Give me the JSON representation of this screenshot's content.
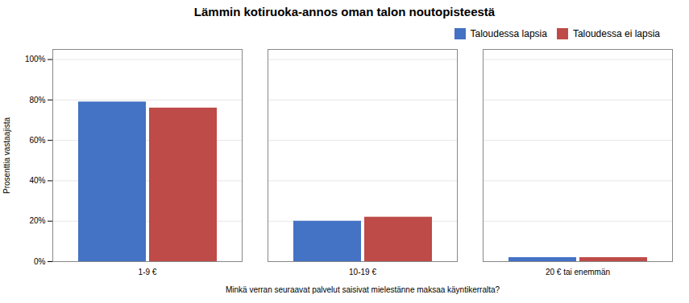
{
  "chart_data": {
    "type": "bar",
    "title": "Lämmin kotiruoka-annos oman talon noutopisteestä",
    "xlabel": "Minkä verran seuraavat palvelut saisivat mielestänne maksaa käyntikerralta?",
    "ylabel": "Prosenttia vastaajista",
    "categories": [
      "1-9 €",
      "10-19 €",
      "20 € tai enemmän"
    ],
    "series": [
      {
        "name": "Taloudessa lapsia",
        "color": "#4472C4",
        "values": [
          0.79,
          0.2,
          0.02
        ]
      },
      {
        "name": "Taloudessa ei lapsia",
        "color": "#BE4B48",
        "values": [
          0.76,
          0.22,
          0.02
        ]
      }
    ],
    "ylim": [
      0,
      1.05
    ],
    "yticks": [
      {
        "value": 0.0,
        "label": "0%"
      },
      {
        "value": 0.2,
        "label": "20%"
      },
      {
        "value": 0.4,
        "label": "40%"
      },
      {
        "value": 0.6,
        "label": "60%"
      },
      {
        "value": 0.8,
        "label": "80%"
      },
      {
        "value": 1.0,
        "label": "100%"
      }
    ],
    "grid": true,
    "legend": "upper right"
  }
}
